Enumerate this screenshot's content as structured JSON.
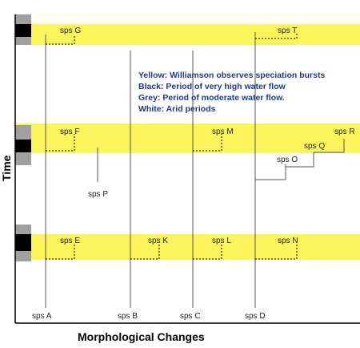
{
  "colors": {
    "band": "#fbf55b",
    "black": "#000000",
    "grey": "#a0a0a0",
    "lineage": "#555555",
    "legend_text": "#1f3a8a"
  },
  "legend": {
    "yellow": "Yellow: Williamson observes speciation bursts",
    "black": "Black:   Period of very high water flow",
    "grey": "Grey:     Period of moderate water flow.",
    "white": "White:   Arid periods"
  },
  "axes": {
    "x_title": "Morphological Changes",
    "y_title": "Time"
  },
  "species_labels": {
    "a": "sps A",
    "b": "sps B",
    "c": "sps C",
    "d": "sps D",
    "e": "sps E",
    "f": "sps F",
    "g": "sps G",
    "k": "sps K",
    "l": "sps L",
    "m": "sps M",
    "n": "sps N",
    "o": "sps O",
    "p": "sps P",
    "q": "sps Q",
    "r": "sps R",
    "t": "sps T"
  }
}
